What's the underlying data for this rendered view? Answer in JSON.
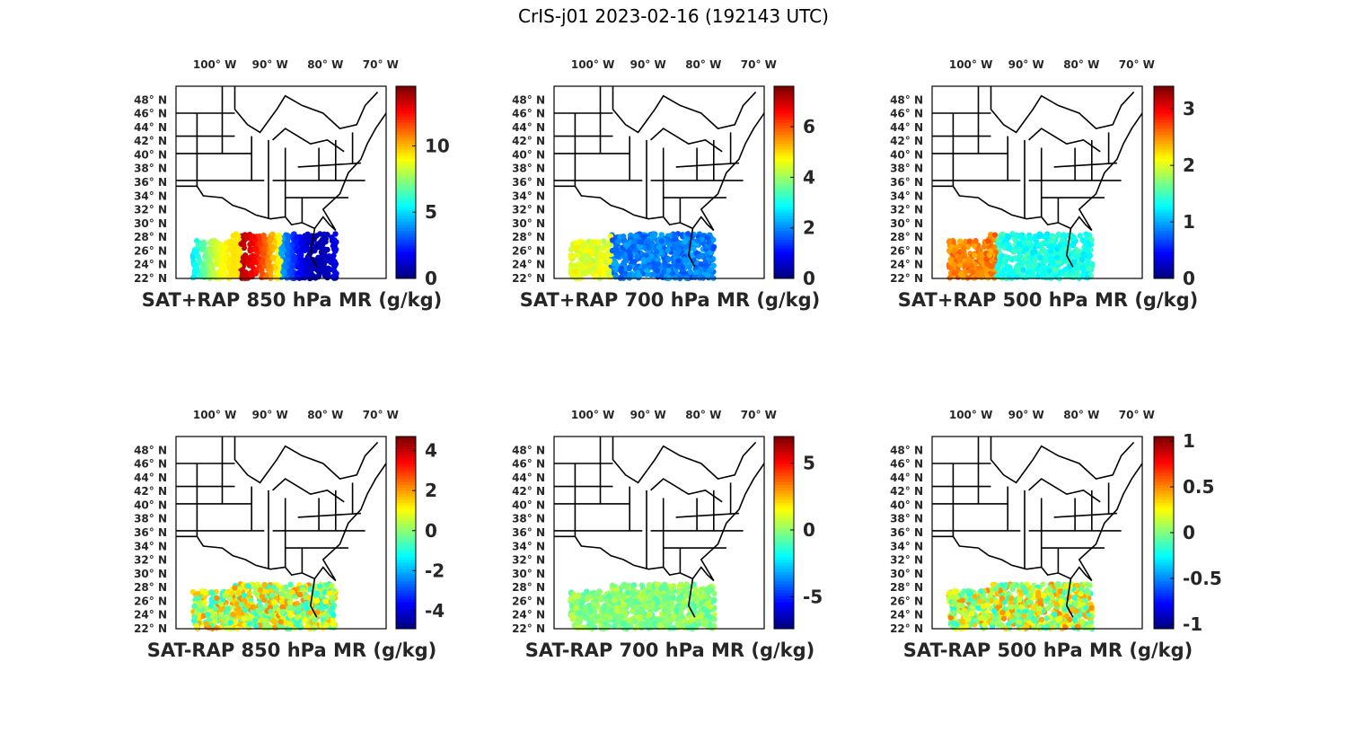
{
  "figure": {
    "title": "CrIS-j01 2023-02-16 (192143 UTC)"
  },
  "map": {
    "lon_labels": [
      "100° W",
      "90° W",
      "80° W",
      "70° W"
    ],
    "lon_values": [
      -100,
      -90,
      -80,
      -70
    ],
    "lat_labels": [
      "48° N",
      "46° N",
      "44° N",
      "42° N",
      "40° N",
      "38° N",
      "36° N",
      "34° N",
      "32° N",
      "30° N",
      "28° N",
      "26° N",
      "24° N",
      "22° N"
    ],
    "lat_values": [
      48,
      46,
      44,
      42,
      40,
      38,
      36,
      34,
      32,
      30,
      28,
      26,
      24,
      22
    ],
    "extent": {
      "lon": [
        -107,
        -69
      ],
      "lat": [
        22,
        50
      ]
    },
    "colormap": "jet"
  },
  "chart_data": [
    {
      "type": "heatmap",
      "title": "SAT+RAP 850 hPa MR (g/kg)",
      "colorbar": {
        "range": [
          0,
          14.5
        ],
        "ticks": [
          0,
          5,
          10
        ],
        "tick_labels": [
          "0",
          "5",
          "10"
        ]
      }
    },
    {
      "type": "heatmap",
      "title": "SAT+RAP 700 hPa MR (g/kg)",
      "colorbar": {
        "range": [
          0,
          7.6
        ],
        "ticks": [
          0,
          2,
          4,
          6
        ],
        "tick_labels": [
          "0",
          "2",
          "4",
          "6"
        ]
      }
    },
    {
      "type": "heatmap",
      "title": "SAT+RAP 500 hPa MR (g/kg)",
      "colorbar": {
        "range": [
          0,
          3.4
        ],
        "ticks": [
          0,
          1,
          2,
          3
        ],
        "tick_labels": [
          "0",
          "1",
          "2",
          "3"
        ]
      }
    },
    {
      "type": "heatmap",
      "title": "SAT-RAP 850 hPa MR (g/kg)",
      "colorbar": {
        "range": [
          -4.9,
          4.7
        ],
        "ticks": [
          -4,
          -2,
          0,
          2,
          4
        ],
        "tick_labels": [
          "-4",
          "-2",
          "0",
          "2",
          "4"
        ]
      }
    },
    {
      "type": "heatmap",
      "title": "SAT-RAP 700 hPa MR (g/kg)",
      "colorbar": {
        "range": [
          -7.4,
          7
        ],
        "ticks": [
          -5,
          0,
          5
        ],
        "tick_labels": [
          "-5",
          "0",
          "5"
        ]
      }
    },
    {
      "type": "heatmap",
      "title": "SAT-RAP 500 hPa MR (g/kg)",
      "colorbar": {
        "range": [
          -1.05,
          1.05
        ],
        "ticks": [
          -1,
          -0.5,
          0,
          0.5,
          1
        ],
        "tick_labels": [
          "-1",
          "-0.5",
          "0",
          "0.5",
          "1"
        ]
      }
    }
  ]
}
